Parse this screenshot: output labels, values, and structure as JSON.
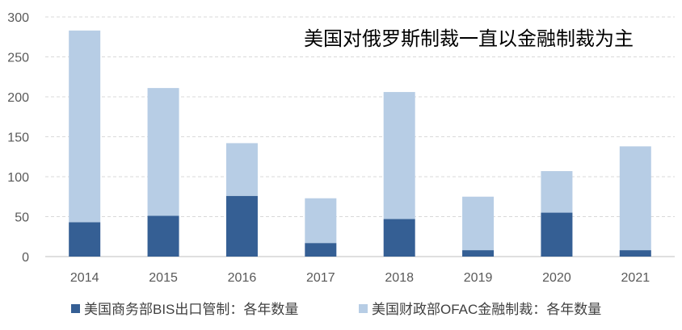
{
  "chart_data": {
    "type": "bar",
    "stacked": true,
    "title": "美国对俄罗斯制裁一直以金融制裁为主",
    "categories": [
      "2014",
      "2015",
      "2016",
      "2017",
      "2018",
      "2019",
      "2020",
      "2021"
    ],
    "series": [
      {
        "name": "美国商务部BIS出口管制：各年数量",
        "values": [
          43,
          51,
          76,
          17,
          47,
          8,
          55,
          8
        ],
        "color": "#355f94"
      },
      {
        "name": "美国财政部OFAC金融制裁：各年数量",
        "values": [
          240,
          160,
          66,
          56,
          159,
          67,
          52,
          130
        ],
        "color": "#b7cde5"
      }
    ],
    "ylim": [
      0,
      300
    ],
    "yticks": [
      "0",
      "50",
      "100",
      "150",
      "200",
      "250",
      "300"
    ],
    "grid": true,
    "legend_position": "bottom"
  }
}
